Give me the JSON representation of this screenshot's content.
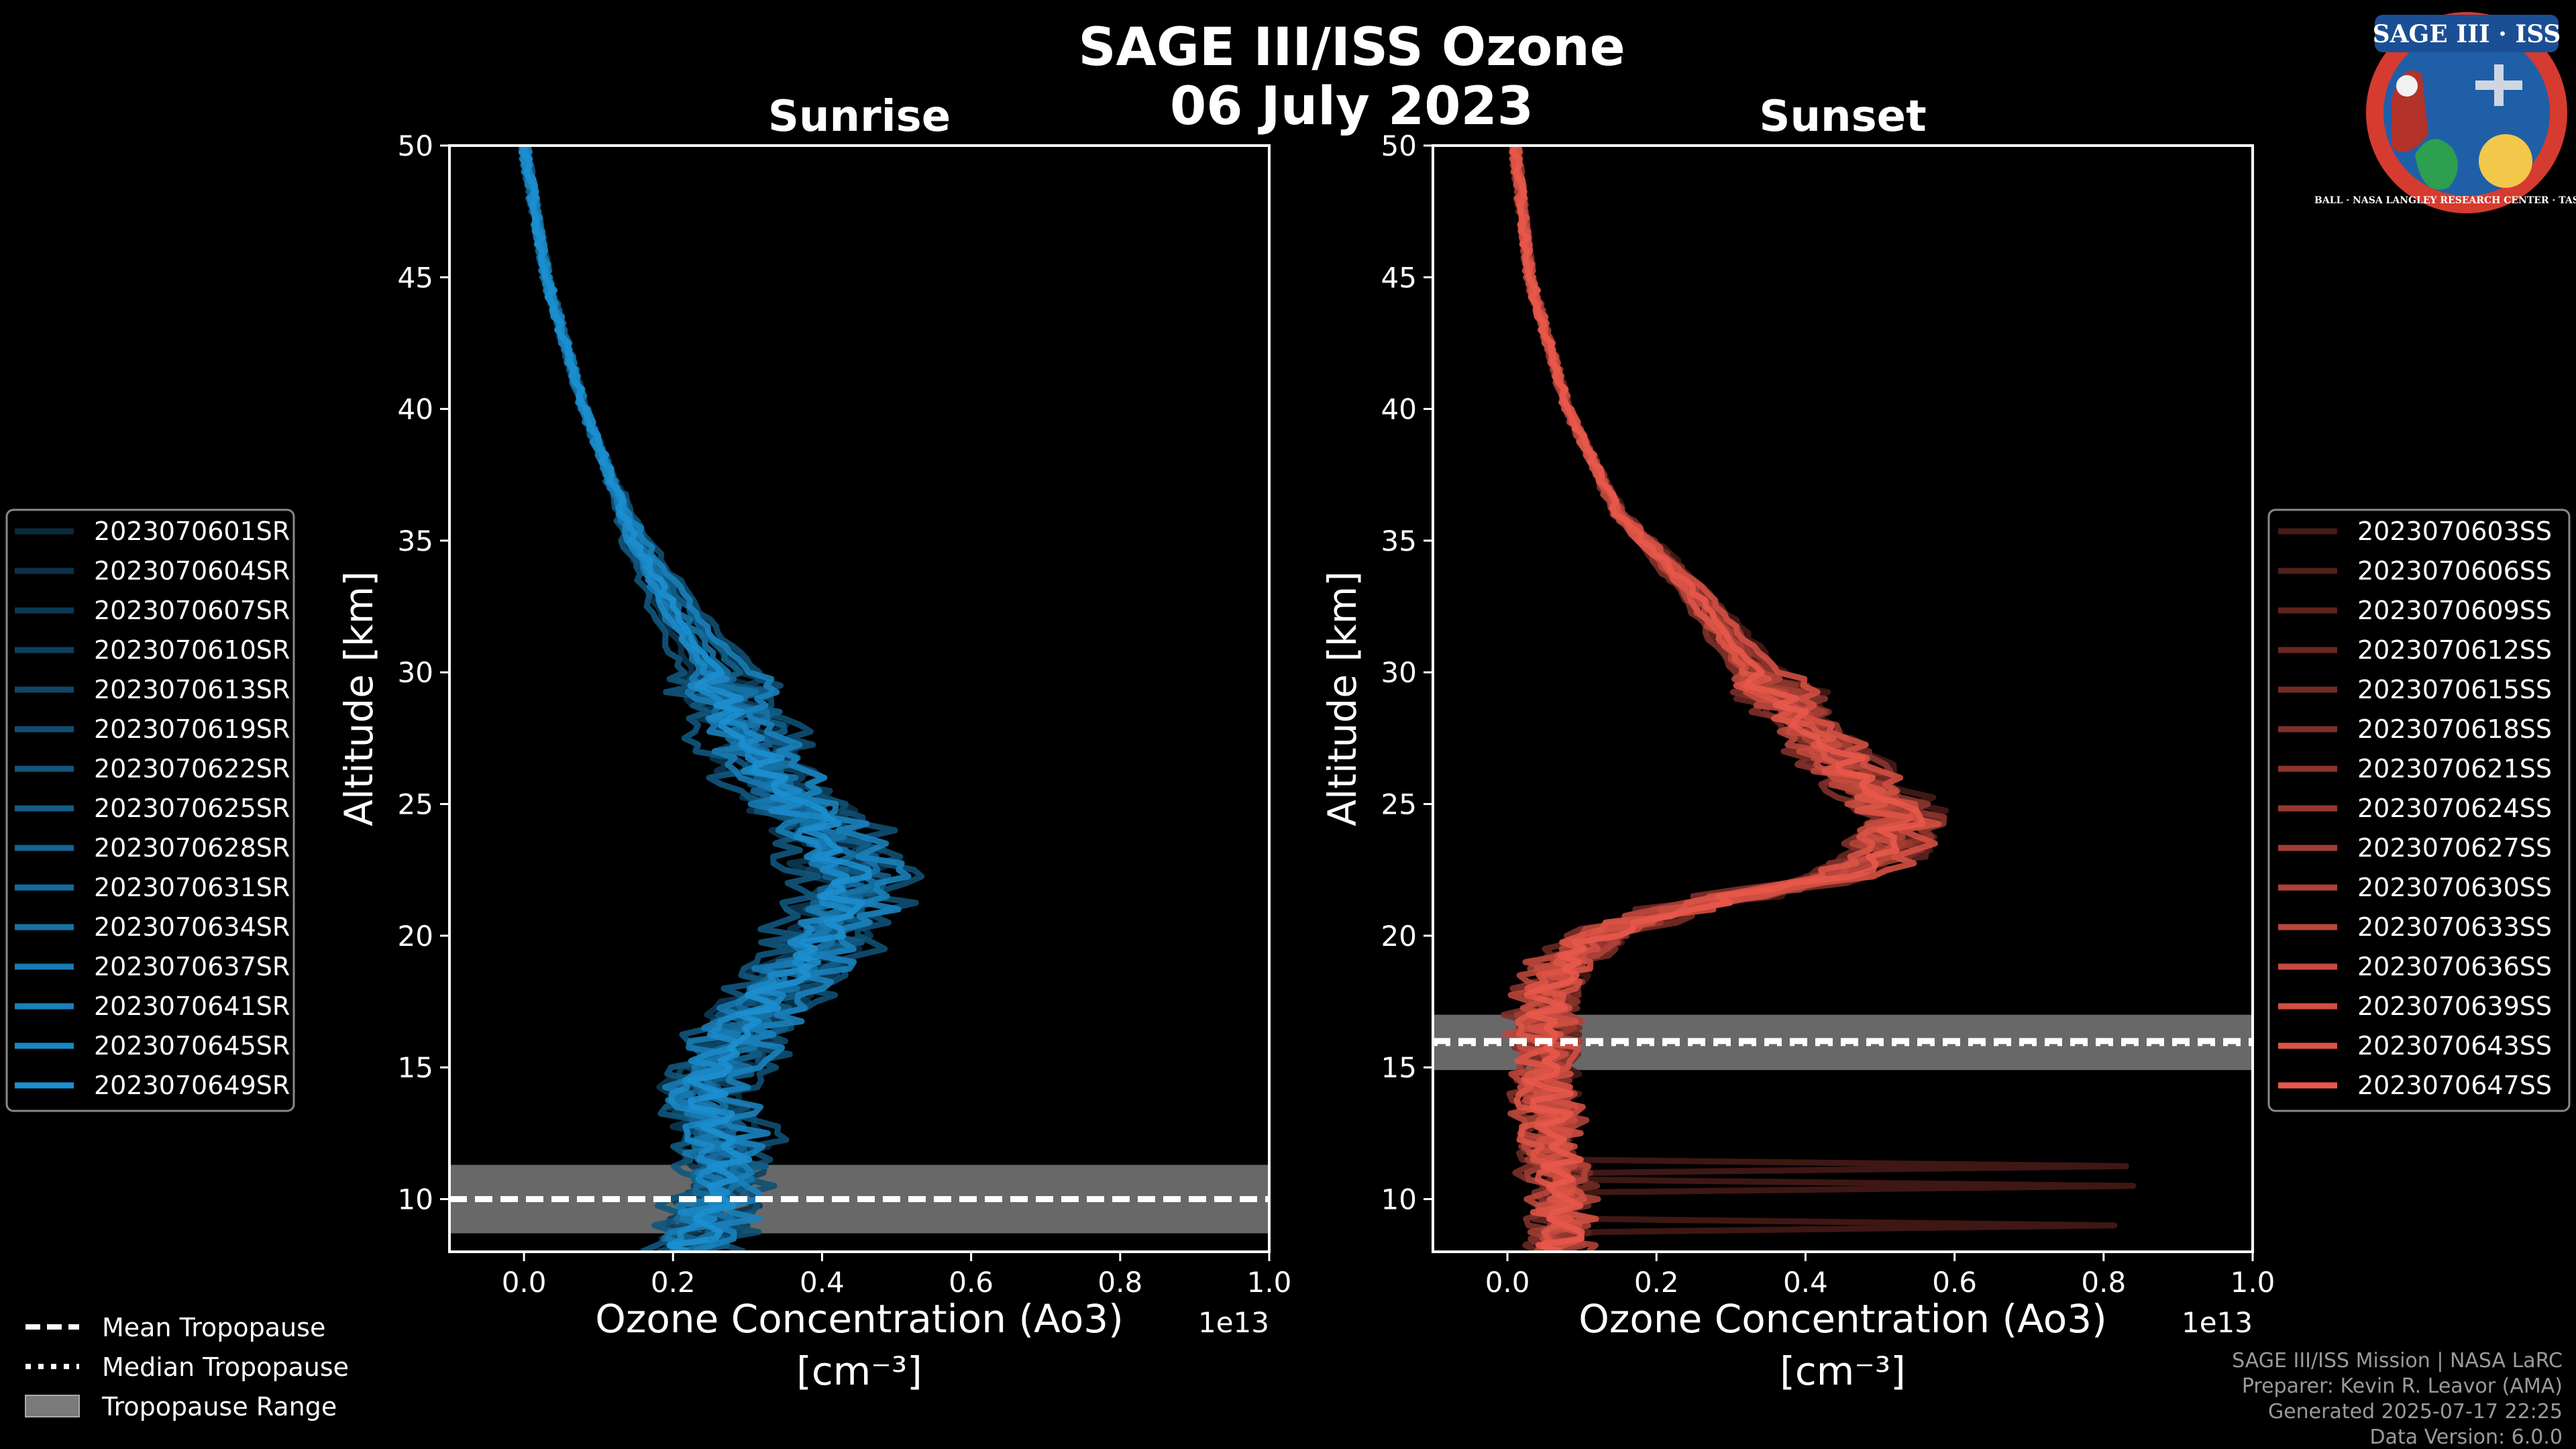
{
  "title": "SAGE III/ISS Ozone",
  "subtitle_date": "06 July 2023",
  "logo": {
    "text": "SAGE III · ISS",
    "ring_text": "BALL · NASA LANGLEY RESEARCH CENTER · TAS-I · ESA"
  },
  "credits": [
    "SAGE III/ISS Mission | NASA LaRC",
    "Preparer: Kevin R. Leavor (AMA)",
    "Generated 2025-07-17 22:25",
    "Data Version: 6.0.0"
  ],
  "tropopause_legend": [
    {
      "label": "Mean Tropopause",
      "style": "dashed"
    },
    {
      "label": "Median Tropopause",
      "style": "dotted"
    },
    {
      "label": "Tropopause Range",
      "style": "patch"
    }
  ],
  "chart_data": [
    {
      "type": "line",
      "title": "Sunrise",
      "xlabel": "Ozone Concentration (Ao3)",
      "xlabel_units": "[cm⁻³]",
      "x_scale_label": "1e13",
      "ylabel": "Altitude [km]",
      "xlim": [
        -0.1,
        1.0
      ],
      "ylim": [
        8,
        50
      ],
      "xticks": [
        0.0,
        0.2,
        0.4,
        0.6,
        0.8,
        1.0
      ],
      "xtick_labels": [
        "0.0",
        "0.2",
        "0.4",
        "0.6",
        "0.8",
        "1.0"
      ],
      "yticks": [
        10,
        15,
        20,
        25,
        30,
        35,
        40,
        45,
        50
      ],
      "ytick_labels": [
        "10",
        "15",
        "20",
        "25",
        "30",
        "35",
        "40",
        "45",
        "50"
      ],
      "base_color": "#1c8fd0",
      "tropopause": {
        "mean": 10.0,
        "median": 10.0,
        "min": 8.7,
        "max": 11.3
      },
      "profile_shape": [
        [
          50,
          0.0
        ],
        [
          45,
          0.03
        ],
        [
          40,
          0.08
        ],
        [
          35,
          0.15
        ],
        [
          32,
          0.21
        ],
        [
          30,
          0.26
        ],
        [
          28,
          0.29
        ],
        [
          26,
          0.33
        ],
        [
          24,
          0.4
        ],
        [
          22,
          0.44
        ],
        [
          20,
          0.4
        ],
        [
          18,
          0.34
        ],
        [
          16,
          0.28
        ],
        [
          14,
          0.24
        ],
        [
          12,
          0.27
        ],
        [
          10,
          0.26
        ],
        [
          8,
          0.22
        ]
      ],
      "series": [
        {
          "name": "2023070601SR",
          "peak": 0.44,
          "offset": 0.0
        },
        {
          "name": "2023070604SR",
          "peak": 0.46,
          "offset": 0.02
        },
        {
          "name": "2023070607SR",
          "peak": 0.42,
          "offset": -0.02
        },
        {
          "name": "2023070610SR",
          "peak": 0.47,
          "offset": 0.01
        },
        {
          "name": "2023070613SR",
          "peak": 0.43,
          "offset": -0.01
        },
        {
          "name": "2023070619SR",
          "peak": 0.48,
          "offset": 0.03
        },
        {
          "name": "2023070622SR",
          "peak": 0.41,
          "offset": -0.03
        },
        {
          "name": "2023070625SR",
          "peak": 0.45,
          "offset": 0.02
        },
        {
          "name": "2023070628SR",
          "peak": 0.43,
          "offset": 0.0
        },
        {
          "name": "2023070631SR",
          "peak": 0.46,
          "offset": -0.02
        },
        {
          "name": "2023070634SR",
          "peak": 0.44,
          "offset": 0.01
        },
        {
          "name": "2023070637SR",
          "peak": 0.42,
          "offset": -0.01
        },
        {
          "name": "2023070641SR",
          "peak": 0.47,
          "offset": 0.02
        },
        {
          "name": "2023070645SR",
          "peak": 0.45,
          "offset": -0.02
        },
        {
          "name": "2023070649SR",
          "peak": 0.44,
          "offset": 0.0
        }
      ]
    },
    {
      "type": "line",
      "title": "Sunset",
      "xlabel": "Ozone Concentration (Ao3)",
      "xlabel_units": "[cm⁻³]",
      "x_scale_label": "1e13",
      "ylabel": "Altitude [km]",
      "xlim": [
        -0.1,
        1.0
      ],
      "ylim": [
        8,
        50
      ],
      "xticks": [
        0.0,
        0.2,
        0.4,
        0.6,
        0.8,
        1.0
      ],
      "xtick_labels": [
        "0.0",
        "0.2",
        "0.4",
        "0.6",
        "0.8",
        "1.0"
      ],
      "yticks": [
        10,
        15,
        20,
        25,
        30,
        35,
        40,
        45,
        50
      ],
      "ytick_labels": [
        "10",
        "15",
        "20",
        "25",
        "30",
        "35",
        "40",
        "45",
        "50"
      ],
      "base_color": "#e8584a",
      "tropopause": {
        "mean": 16.0,
        "median": 15.9,
        "min": 14.9,
        "max": 17.0
      },
      "profile_shape": [
        [
          50,
          0.01
        ],
        [
          45,
          0.03
        ],
        [
          40,
          0.08
        ],
        [
          36,
          0.15
        ],
        [
          33,
          0.25
        ],
        [
          30,
          0.33
        ],
        [
          28,
          0.4
        ],
        [
          26,
          0.46
        ],
        [
          24.5,
          0.52
        ],
        [
          23,
          0.5
        ],
        [
          22,
          0.4
        ],
        [
          21,
          0.22
        ],
        [
          20,
          0.12
        ],
        [
          19,
          0.07
        ],
        [
          17,
          0.05
        ],
        [
          15,
          0.05
        ],
        [
          12,
          0.06
        ],
        [
          10,
          0.07
        ],
        [
          8,
          0.07
        ]
      ],
      "series": [
        {
          "name": "2023070603SS",
          "peak": 0.55,
          "offset": 0.02
        },
        {
          "name": "2023070606SS",
          "peak": 0.52,
          "offset": 0.0
        },
        {
          "name": "2023070609SS",
          "peak": 0.54,
          "offset": 0.01
        },
        {
          "name": "2023070612SS",
          "peak": 0.5,
          "offset": -0.01
        },
        {
          "name": "2023070615SS",
          "peak": 0.53,
          "offset": 0.02
        },
        {
          "name": "2023070618SS",
          "peak": 0.51,
          "offset": -0.02
        },
        {
          "name": "2023070621SS",
          "peak": 0.56,
          "offset": 0.0
        },
        {
          "name": "2023070624SS",
          "peak": 0.52,
          "offset": 0.01
        },
        {
          "name": "2023070627SS",
          "peak": 0.54,
          "offset": -0.01
        },
        {
          "name": "2023070630SS",
          "peak": 0.5,
          "offset": 0.02
        },
        {
          "name": "2023070633SS",
          "peak": 0.53,
          "offset": -0.02
        },
        {
          "name": "2023070636SS",
          "peak": 0.51,
          "offset": 0.0
        },
        {
          "name": "2023070639SS",
          "peak": 0.55,
          "offset": 0.01
        },
        {
          "name": "2023070643SS",
          "peak": 0.52,
          "offset": -0.01
        },
        {
          "name": "2023070647SS",
          "peak": 0.53,
          "offset": 0.0
        }
      ]
    }
  ]
}
